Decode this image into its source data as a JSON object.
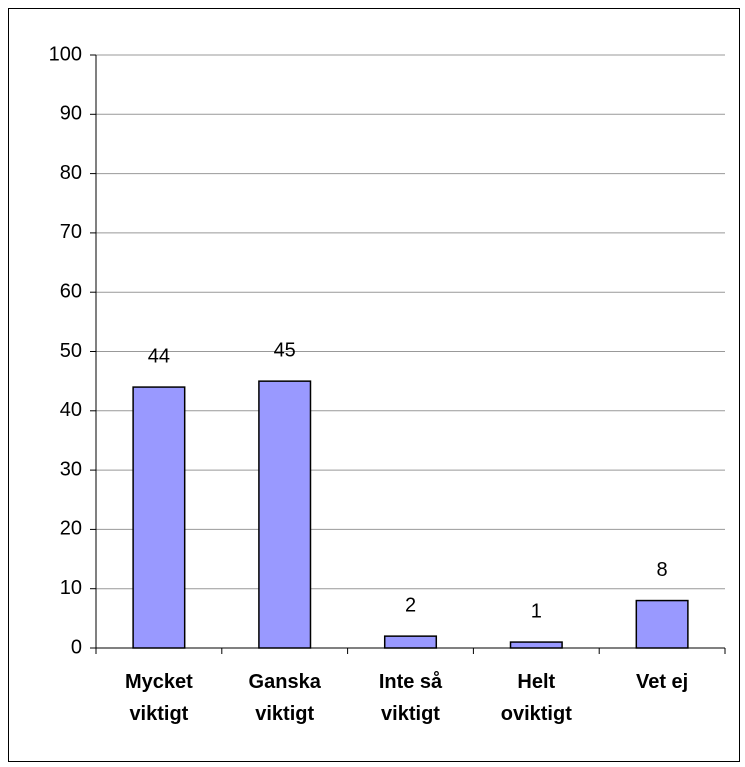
{
  "chart_data": {
    "type": "bar",
    "categories": [
      "Mycket viktigt",
      "Ganska viktigt",
      "Inte så viktigt",
      "Helt oviktigt",
      "Vet ej"
    ],
    "values": [
      44,
      45,
      2,
      1,
      8
    ],
    "color": "#9999ff",
    "ylim": [
      0,
      100
    ],
    "yticks": [
      0,
      10,
      20,
      30,
      40,
      50,
      60,
      70,
      80,
      90,
      100
    ],
    "grid": true
  }
}
